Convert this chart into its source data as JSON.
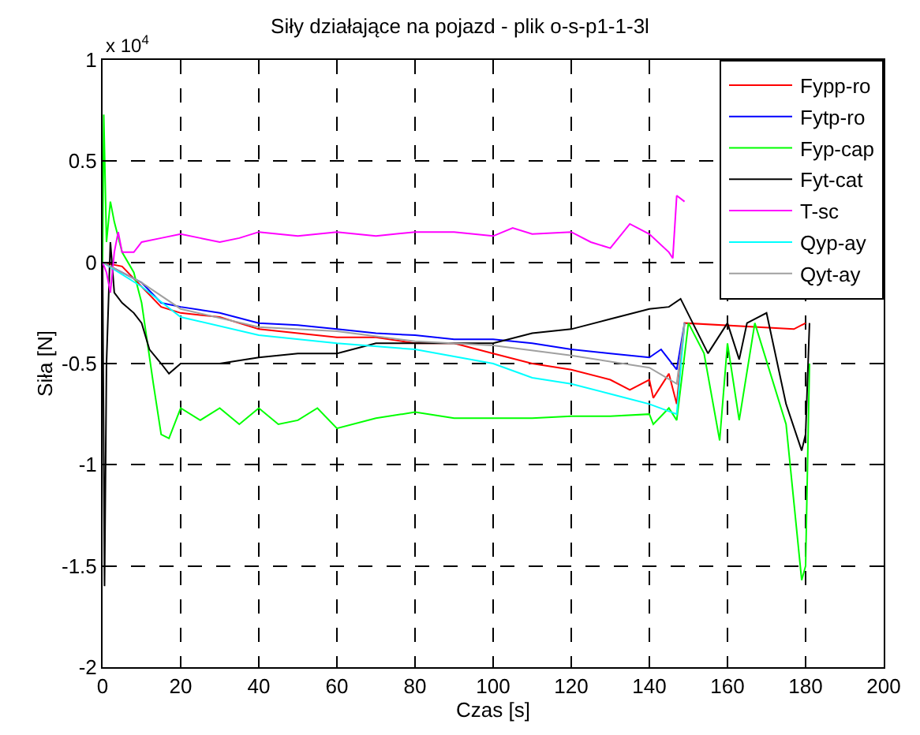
{
  "chart_data": {
    "type": "line",
    "title": "Siły działające na pojazd - plik o-s-p1-1-3l",
    "xlabel": "Czas [s]",
    "ylabel": "Siła [N]",
    "annotations": [
      "x 10$^{4}$"
    ],
    "xlim": [
      0,
      200
    ],
    "xticks": [
      0,
      20,
      40,
      60,
      80,
      100,
      120,
      140,
      160,
      180,
      200
    ],
    "ylim": [
      -2,
      1
    ],
    "yticks": [
      -2,
      -1.5,
      -1,
      -0.5,
      0,
      0.5,
      1
    ],
    "grid": true,
    "legend": "top right",
    "line_style": "solid",
    "series": [
      {
        "name": "Fypp-ro",
        "color": "#ff0000",
        "x": [
          0,
          5,
          10,
          15,
          20,
          30,
          40,
          50,
          60,
          70,
          80,
          90,
          100,
          110,
          120,
          130,
          135,
          140,
          141,
          145,
          147,
          149,
          177,
          180
        ],
        "values": [
          0,
          -0.02,
          -0.12,
          -0.22,
          -0.25,
          -0.27,
          -0.33,
          -0.35,
          -0.37,
          -0.37,
          -0.4,
          -0.4,
          -0.45,
          -0.5,
          -0.53,
          -0.58,
          -0.63,
          -0.58,
          -0.67,
          -0.55,
          -0.7,
          -0.3,
          -0.33,
          -0.3
        ]
      },
      {
        "name": "Fytp-ro",
        "color": "#0000ff",
        "x": [
          0,
          10,
          15,
          20,
          30,
          40,
          50,
          60,
          70,
          80,
          90,
          100,
          110,
          120,
          130,
          140,
          143,
          147,
          149
        ],
        "values": [
          0,
          -0.1,
          -0.2,
          -0.22,
          -0.25,
          -0.3,
          -0.31,
          -0.33,
          -0.35,
          -0.36,
          -0.38,
          -0.38,
          -0.4,
          -0.43,
          -0.45,
          -0.47,
          -0.43,
          -0.53,
          -0.3
        ]
      },
      {
        "name": "Fyp-cap",
        "color": "#00ff00",
        "x": [
          0,
          0.3,
          1,
          2,
          3,
          5,
          8,
          10,
          13,
          15,
          17,
          20,
          25,
          30,
          35,
          40,
          45,
          50,
          55,
          60,
          70,
          80,
          90,
          100,
          110,
          120,
          130,
          140,
          141,
          145,
          147,
          150,
          154,
          158,
          160,
          163,
          167,
          175,
          179,
          180,
          181
        ],
        "values": [
          0,
          0.73,
          0.1,
          0.3,
          0.2,
          0.05,
          -0.05,
          -0.2,
          -0.6,
          -0.85,
          -0.87,
          -0.72,
          -0.78,
          -0.72,
          -0.8,
          -0.72,
          -0.8,
          -0.78,
          -0.72,
          -0.82,
          -0.77,
          -0.74,
          -0.77,
          -0.77,
          -0.77,
          -0.76,
          -0.76,
          -0.75,
          -0.8,
          -0.72,
          -0.78,
          -0.3,
          -0.45,
          -0.88,
          -0.4,
          -0.78,
          -0.3,
          -0.8,
          -1.57,
          -1.5,
          -0.5
        ]
      },
      {
        "name": "Fyt-cat",
        "color": "#000000",
        "x": [
          0,
          0.5,
          1,
          2,
          3,
          5,
          8,
          10,
          12,
          15,
          17,
          20,
          30,
          40,
          50,
          60,
          70,
          80,
          90,
          100,
          110,
          120,
          130,
          140,
          145,
          148,
          155,
          160,
          163,
          165,
          170,
          175,
          179,
          180,
          181
        ],
        "values": [
          0,
          -1.6,
          -0.5,
          0.1,
          -0.15,
          -0.2,
          -0.25,
          -0.3,
          -0.43,
          -0.5,
          -0.55,
          -0.5,
          -0.5,
          -0.47,
          -0.45,
          -0.45,
          -0.4,
          -0.4,
          -0.4,
          -0.4,
          -0.35,
          -0.33,
          -0.28,
          -0.23,
          -0.22,
          -0.18,
          -0.45,
          -0.3,
          -0.48,
          -0.3,
          -0.25,
          -0.7,
          -0.93,
          -0.85,
          -0.3
        ]
      },
      {
        "name": "T-sc",
        "color": "#ff00ff",
        "x": [
          0,
          1,
          2,
          3,
          4,
          5,
          8,
          10,
          15,
          20,
          25,
          30,
          35,
          40,
          50,
          60,
          70,
          80,
          90,
          100,
          105,
          110,
          120,
          125,
          130,
          135,
          140,
          145,
          146,
          147,
          149
        ],
        "values": [
          0,
          -0.05,
          -0.15,
          0.05,
          0.15,
          0.05,
          0.05,
          0.1,
          0.12,
          0.14,
          0.12,
          0.1,
          0.12,
          0.15,
          0.13,
          0.15,
          0.13,
          0.15,
          0.15,
          0.13,
          0.17,
          0.14,
          0.15,
          0.1,
          0.07,
          0.19,
          0.14,
          0.05,
          0.02,
          0.33,
          0.3
        ]
      },
      {
        "name": "Qyp-ay",
        "color": "#00ffff",
        "x": [
          0,
          10,
          20,
          40,
          60,
          80,
          100,
          110,
          120,
          130,
          140,
          147,
          149
        ],
        "values": [
          0,
          -0.12,
          -0.27,
          -0.36,
          -0.4,
          -0.43,
          -0.5,
          -0.57,
          -0.6,
          -0.65,
          -0.7,
          -0.75,
          -0.3
        ]
      },
      {
        "name": "Qyt-ay",
        "color": "#a0a0a0",
        "x": [
          0,
          10,
          20,
          40,
          60,
          80,
          100,
          120,
          140,
          147,
          149
        ],
        "values": [
          0,
          -0.1,
          -0.23,
          -0.32,
          -0.34,
          -0.39,
          -0.41,
          -0.46,
          -0.52,
          -0.6,
          -0.3
        ]
      }
    ]
  }
}
